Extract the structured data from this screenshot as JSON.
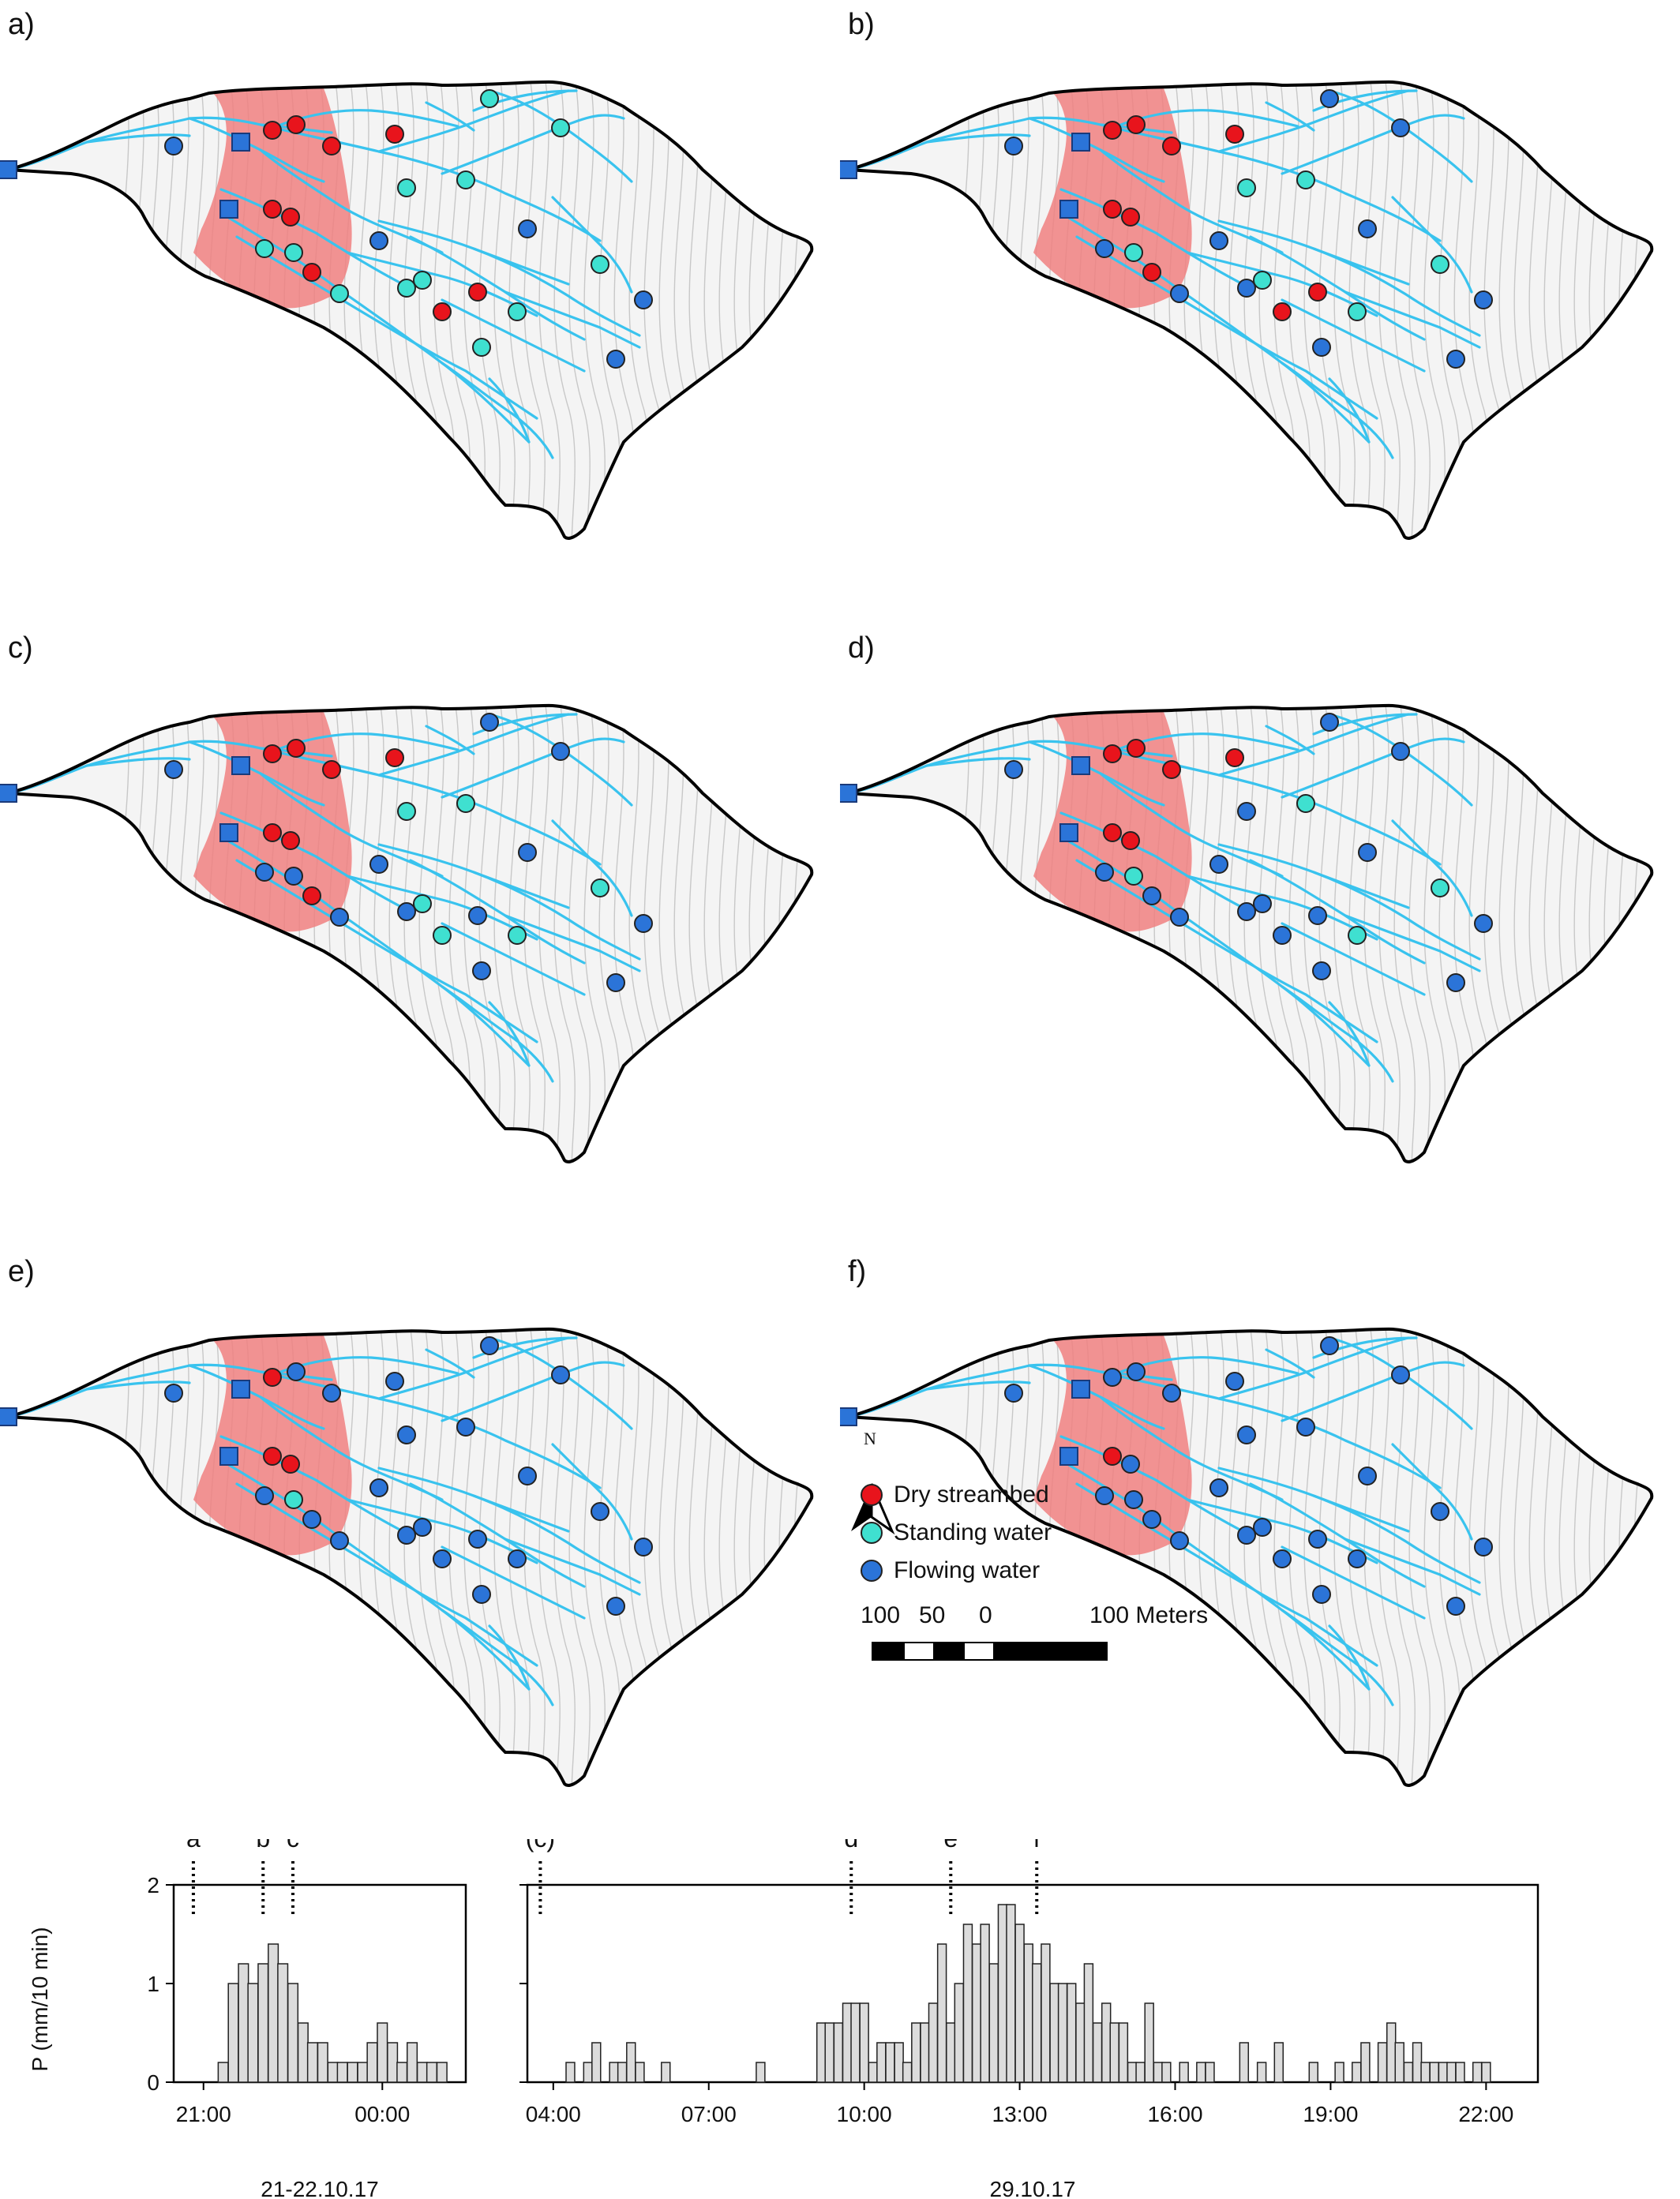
{
  "panels": [
    {
      "label": "a)",
      "sites": [
        "F",
        "D",
        "D",
        "D",
        "D",
        "S",
        "S",
        "S",
        "S",
        "F",
        "F",
        "D",
        "D",
        "S",
        "D",
        "S",
        "S",
        "S",
        "S",
        "D",
        "D",
        "S",
        "S",
        "S",
        "F",
        "F"
      ]
    },
    {
      "label": "b)",
      "sites": [
        "F",
        "D",
        "D",
        "D",
        "D",
        "F",
        "F",
        "S",
        "S",
        "F",
        "F",
        "D",
        "D",
        "S",
        "D",
        "F",
        "F",
        "F",
        "S",
        "D",
        "D",
        "S",
        "F",
        "S",
        "F",
        "F"
      ]
    },
    {
      "label": "c)",
      "sites": [
        "F",
        "D",
        "D",
        "D",
        "D",
        "F",
        "F",
        "S",
        "S",
        "F",
        "F",
        "D",
        "D",
        "F",
        "D",
        "F",
        "F",
        "F",
        "S",
        "F",
        "S",
        "S",
        "F",
        "S",
        "F",
        "F"
      ]
    },
    {
      "label": "d)",
      "sites": [
        "F",
        "D",
        "D",
        "D",
        "D",
        "F",
        "F",
        "F",
        "S",
        "F",
        "F",
        "D",
        "D",
        "S",
        "F",
        "F",
        "F",
        "F",
        "F",
        "F",
        "F",
        "S",
        "F",
        "S",
        "F",
        "F"
      ]
    },
    {
      "label": "e)",
      "sites": [
        "F",
        "D",
        "F",
        "F",
        "F",
        "F",
        "F",
        "F",
        "F",
        "F",
        "F",
        "D",
        "D",
        "S",
        "F",
        "F",
        "F",
        "F",
        "F",
        "F",
        "F",
        "F",
        "F",
        "F",
        "F",
        "F"
      ]
    },
    {
      "label": "f)",
      "sites": [
        "F",
        "F",
        "F",
        "F",
        "F",
        "F",
        "F",
        "F",
        "F",
        "F",
        "F",
        "D",
        "F",
        "F",
        "F",
        "F",
        "F",
        "F",
        "F",
        "F",
        "F",
        "F",
        "F",
        "F",
        "F",
        "F"
      ]
    }
  ],
  "legend": {
    "items": [
      {
        "label": "Dry streambed",
        "color": "#e8141c"
      },
      {
        "label": "Standing water",
        "color": "#3fe0d0"
      },
      {
        "label": "Flowing water",
        "color": "#2b74d8"
      }
    ],
    "north": "N"
  },
  "scalebar": {
    "labels": [
      "100",
      "50",
      "0",
      "100 Meters"
    ]
  },
  "colors": {
    "stream": "#39c3ee",
    "dry_zone": "#f08080",
    "outline": "#000000",
    "contour": "#c8c8c8",
    "outlet": "#2b74d8"
  },
  "chart_data": [
    {
      "type": "bar",
      "ylabel": "P (mm/10 min)",
      "ylim": [
        0,
        2
      ],
      "yticks": [
        0,
        1,
        2
      ],
      "xlim": [
        20.5,
        25.4
      ],
      "xticks": [
        {
          "v": 21,
          "label": "21:00"
        },
        {
          "v": 24,
          "label": "00:00"
        }
      ],
      "date_label": "21-22.10.17",
      "bin_hours": 0.1667,
      "x": [
        21.33,
        21.5,
        21.67,
        21.83,
        22.0,
        22.17,
        22.33,
        22.5,
        22.67,
        22.83,
        23.0,
        23.17,
        23.33,
        23.5,
        23.67,
        23.83,
        24.0,
        24.17,
        24.33,
        24.5,
        24.67,
        24.83,
        25.0
      ],
      "values": [
        0.2,
        1.0,
        1.2,
        1.0,
        1.2,
        1.4,
        1.2,
        1.0,
        0.6,
        0.4,
        0.4,
        0.2,
        0.2,
        0.2,
        0.2,
        0.4,
        0.6,
        0.4,
        0.2,
        0.4,
        0.2,
        0.2,
        0.2
      ],
      "markers": [
        {
          "label": "a",
          "x": 20.83
        },
        {
          "label": "b",
          "x": 22.0
        },
        {
          "label": "c",
          "x": 22.5
        }
      ]
    },
    {
      "type": "bar",
      "ylabel": "",
      "ylim": [
        0,
        2
      ],
      "yticks": [
        0,
        1,
        2
      ],
      "xlim": [
        3.5,
        23.0
      ],
      "xticks": [
        {
          "v": 4,
          "label": "04:00"
        },
        {
          "v": 7,
          "label": "07:00"
        },
        {
          "v": 10,
          "label": "10:00"
        },
        {
          "v": 13,
          "label": "13:00"
        },
        {
          "v": 16,
          "label": "16:00"
        },
        {
          "v": 19,
          "label": "19:00"
        },
        {
          "v": 22,
          "label": "22:00"
        }
      ],
      "date_label": "29.10.17",
      "bin_hours": 0.1667,
      "x": [
        4.33,
        4.67,
        4.83,
        5.17,
        5.33,
        5.5,
        5.67,
        6.17,
        8.0,
        9.17,
        9.33,
        9.5,
        9.67,
        9.83,
        10.0,
        10.17,
        10.33,
        10.5,
        10.67,
        10.83,
        11.0,
        11.17,
        11.33,
        11.5,
        11.67,
        11.83,
        12.0,
        12.17,
        12.33,
        12.5,
        12.67,
        12.83,
        13.0,
        13.17,
        13.33,
        13.5,
        13.67,
        13.83,
        14.0,
        14.17,
        14.33,
        14.5,
        14.67,
        14.83,
        15.0,
        15.17,
        15.33,
        15.5,
        15.67,
        15.83,
        16.17,
        16.5,
        16.67,
        17.33,
        17.67,
        18.0,
        18.67,
        19.17,
        19.5,
        19.67,
        20.0,
        20.17,
        20.33,
        20.5,
        20.67,
        20.83,
        21.0,
        21.17,
        21.33,
        21.5,
        21.83,
        22.0
      ],
      "values": [
        0.2,
        0.2,
        0.4,
        0.2,
        0.2,
        0.4,
        0.2,
        0.2,
        0.2,
        0.6,
        0.6,
        0.6,
        0.8,
        0.8,
        0.8,
        0.2,
        0.4,
        0.4,
        0.4,
        0.2,
        0.6,
        0.6,
        0.8,
        1.4,
        0.6,
        1.0,
        1.6,
        1.4,
        1.6,
        1.2,
        1.8,
        1.8,
        1.6,
        1.4,
        1.2,
        1.4,
        1.0,
        1.0,
        1.0,
        0.8,
        1.2,
        0.6,
        0.8,
        0.6,
        0.6,
        0.2,
        0.2,
        0.8,
        0.2,
        0.2,
        0.2,
        0.2,
        0.2,
        0.4,
        0.2,
        0.4,
        0.2,
        0.2,
        0.2,
        0.4,
        0.4,
        0.6,
        0.4,
        0.2,
        0.4,
        0.2,
        0.2,
        0.2,
        0.2,
        0.2,
        0.2,
        0.2
      ],
      "markers": [
        {
          "label": "(c)",
          "x": 3.75
        },
        {
          "label": "d",
          "x": 9.75
        },
        {
          "label": "e",
          "x": 11.67
        },
        {
          "label": "f",
          "x": 13.33
        }
      ]
    }
  ]
}
